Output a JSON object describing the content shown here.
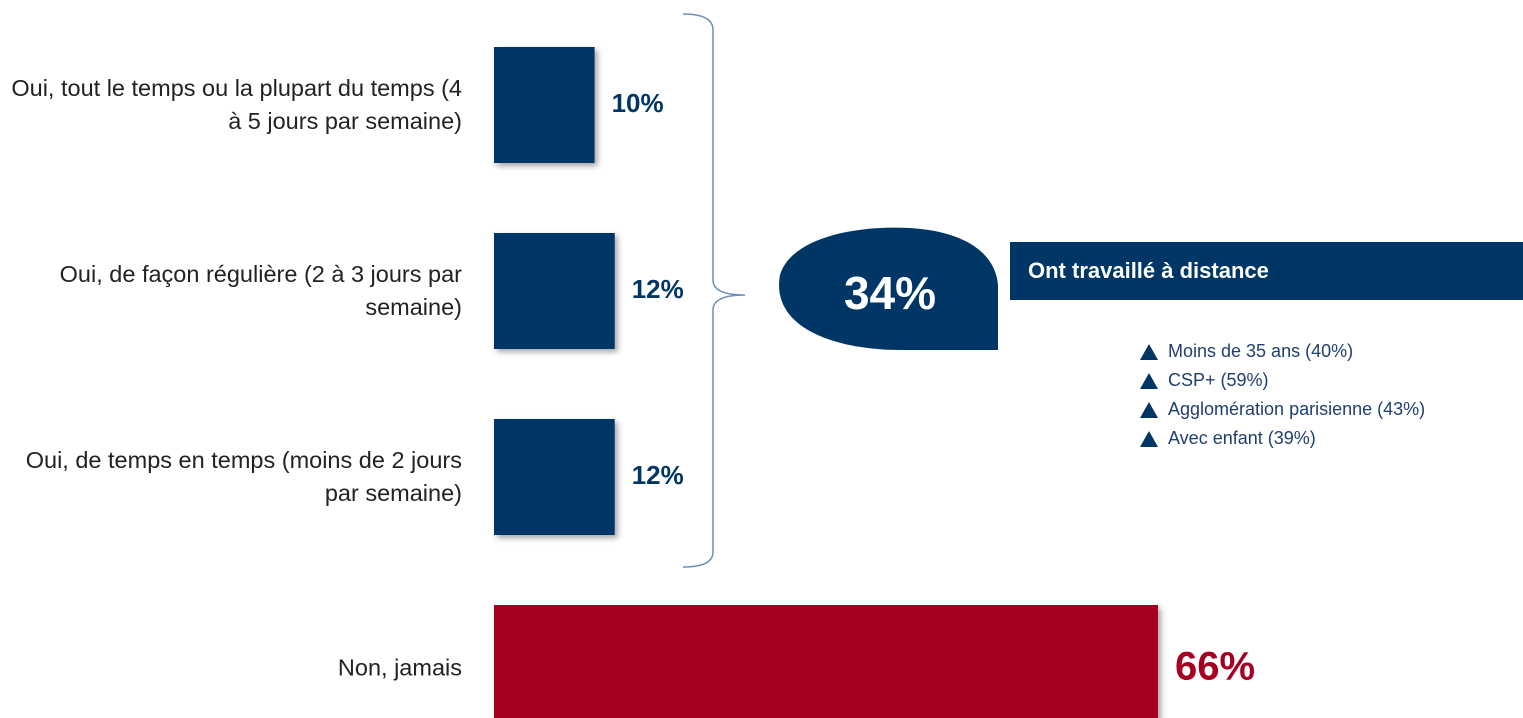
{
  "chart_data": {
    "type": "bar",
    "orientation": "horizontal",
    "categories": [
      "Oui, tout le temps ou la plupart du temps (4 à 5 jours par semaine)",
      "Oui, de façon régulière (2 à 3 jours par semaine)",
      "Oui, de temps en temps (moins de 2 jours par semaine)",
      "Non, jamais"
    ],
    "values": [
      10,
      12,
      12,
      66
    ],
    "value_labels": [
      "10%",
      "12%",
      "12%",
      "66%"
    ],
    "colors": [
      "#003665",
      "#003665",
      "#003665",
      "#a50021"
    ],
    "annotations": {
      "total_label": "34%",
      "total_text": "Ont travaillé à distance",
      "notes": [
        "Moins de 35 ans (40%)",
        "CSP+ (59%)",
        "Agglomération parisienne (43%)",
        "Avec enfant (39%)"
      ]
    }
  }
}
